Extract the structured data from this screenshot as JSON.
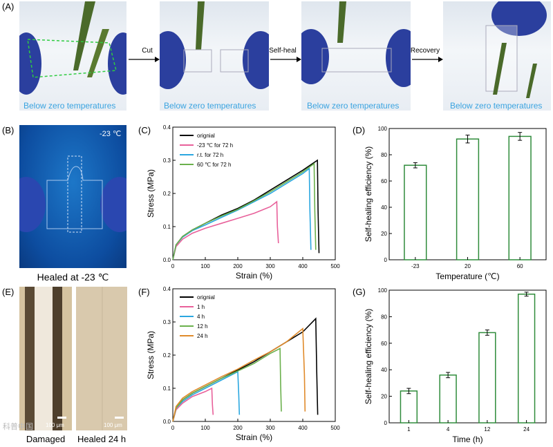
{
  "panelA": {
    "label": "(A)",
    "caption": "Below zero temperatures",
    "arrows": [
      "Cut",
      "Self-heal",
      "Recovery"
    ]
  },
  "panelB": {
    "label": "(B)",
    "temp": "-23 ℃",
    "caption": "Healed at -23 ℃"
  },
  "panelE": {
    "label": "(E)",
    "scale": "100 μm",
    "captions": [
      "Damaged",
      "Healed 24 h"
    ],
    "watermark": "科普中国"
  },
  "chart_data": [
    {
      "id": "C",
      "panel_label": "(C)",
      "type": "line",
      "xlabel": "Strain (%)",
      "ylabel": "Stress (MPa)",
      "xlim": [
        0,
        500
      ],
      "ylim": [
        0,
        0.4
      ],
      "xticks": [
        0,
        100,
        200,
        300,
        400,
        500
      ],
      "yticks": [
        0.0,
        0.1,
        0.2,
        0.3,
        0.4
      ],
      "series": [
        {
          "name": "orignial",
          "color": "#000000",
          "x": [
            0,
            10,
            30,
            60,
            100,
            150,
            200,
            250,
            300,
            350,
            400,
            430,
            445,
            447,
            450
          ],
          "y": [
            0,
            0.045,
            0.07,
            0.09,
            0.11,
            0.135,
            0.155,
            0.18,
            0.21,
            0.24,
            0.27,
            0.29,
            0.3,
            0.15,
            0.02
          ]
        },
        {
          "name": "-23 ℃ for 72 h",
          "color": "#e8609a",
          "x": [
            0,
            10,
            30,
            60,
            100,
            150,
            200,
            250,
            300,
            320,
            322,
            325
          ],
          "y": [
            0,
            0.04,
            0.062,
            0.08,
            0.095,
            0.11,
            0.125,
            0.14,
            0.16,
            0.175,
            0.1,
            0.05
          ]
        },
        {
          "name": "r.t. for 72 h",
          "color": "#2aa7e0",
          "x": [
            0,
            10,
            30,
            60,
            100,
            150,
            200,
            250,
            300,
            350,
            400,
            420,
            422,
            425
          ],
          "y": [
            0,
            0.045,
            0.068,
            0.088,
            0.105,
            0.128,
            0.15,
            0.175,
            0.2,
            0.23,
            0.26,
            0.275,
            0.15,
            0.03
          ]
        },
        {
          "name": "60 ℃ for 72 h",
          "color": "#6ab04c",
          "x": [
            0,
            10,
            30,
            60,
            100,
            150,
            200,
            250,
            300,
            350,
            400,
            435,
            437,
            440
          ],
          "y": [
            0,
            0.045,
            0.07,
            0.09,
            0.11,
            0.132,
            0.152,
            0.178,
            0.205,
            0.235,
            0.265,
            0.29,
            0.15,
            0.03
          ]
        }
      ]
    },
    {
      "id": "D",
      "panel_label": "(D)",
      "type": "bar",
      "xlabel": "Temperature (℃)",
      "ylabel": "Self-healing efficiency (%)",
      "categories": [
        "-23",
        "20",
        "60"
      ],
      "values": [
        72,
        92,
        94
      ],
      "errors": [
        2,
        3,
        3
      ],
      "ylim": [
        0,
        100
      ],
      "yticks": [
        0,
        20,
        40,
        60,
        80,
        100
      ]
    },
    {
      "id": "F",
      "panel_label": "(F)",
      "type": "line",
      "xlabel": "Strain (%)",
      "ylabel": "Stress (MPa)",
      "xlim": [
        0,
        500
      ],
      "ylim": [
        0,
        0.4
      ],
      "xticks": [
        0,
        100,
        200,
        300,
        400,
        500
      ],
      "yticks": [
        0.0,
        0.1,
        0.2,
        0.3,
        0.4
      ],
      "series": [
        {
          "name": "orignial",
          "color": "#000000",
          "x": [
            0,
            10,
            30,
            60,
            100,
            150,
            200,
            250,
            300,
            350,
            400,
            440,
            443,
            446
          ],
          "y": [
            0,
            0.04,
            0.065,
            0.085,
            0.105,
            0.13,
            0.155,
            0.18,
            0.21,
            0.24,
            0.27,
            0.31,
            0.15,
            0.02
          ]
        },
        {
          "name": "1 h",
          "color": "#e8609a",
          "x": [
            0,
            10,
            30,
            60,
            100,
            120,
            122,
            124
          ],
          "y": [
            0,
            0.035,
            0.055,
            0.075,
            0.09,
            0.1,
            0.05,
            0.02
          ]
        },
        {
          "name": "4 h",
          "color": "#2aa7e0",
          "x": [
            0,
            10,
            30,
            60,
            100,
            150,
            200,
            203,
            205
          ],
          "y": [
            0,
            0.04,
            0.06,
            0.08,
            0.1,
            0.125,
            0.15,
            0.08,
            0.02
          ]
        },
        {
          "name": "12 h",
          "color": "#6ab04c",
          "x": [
            0,
            10,
            30,
            60,
            100,
            150,
            200,
            250,
            300,
            330,
            332,
            334
          ],
          "y": [
            0,
            0.04,
            0.065,
            0.085,
            0.105,
            0.13,
            0.152,
            0.175,
            0.205,
            0.22,
            0.11,
            0.03
          ]
        },
        {
          "name": "24 h",
          "color": "#e08a2a",
          "x": [
            0,
            10,
            30,
            60,
            100,
            150,
            200,
            250,
            300,
            350,
            400,
            405,
            407
          ],
          "y": [
            0,
            0.045,
            0.07,
            0.09,
            0.11,
            0.135,
            0.158,
            0.185,
            0.21,
            0.24,
            0.28,
            0.14,
            0.03
          ]
        }
      ]
    },
    {
      "id": "G",
      "panel_label": "(G)",
      "type": "bar",
      "xlabel": "Time (h)",
      "ylabel": "Self-healing efficiency (%)",
      "categories": [
        "1",
        "4",
        "12",
        "24"
      ],
      "values": [
        24,
        36,
        68,
        97
      ],
      "errors": [
        2,
        2,
        2,
        1.5
      ],
      "ylim": [
        0,
        100
      ],
      "yticks": [
        0,
        20,
        40,
        60,
        80,
        100
      ]
    }
  ]
}
